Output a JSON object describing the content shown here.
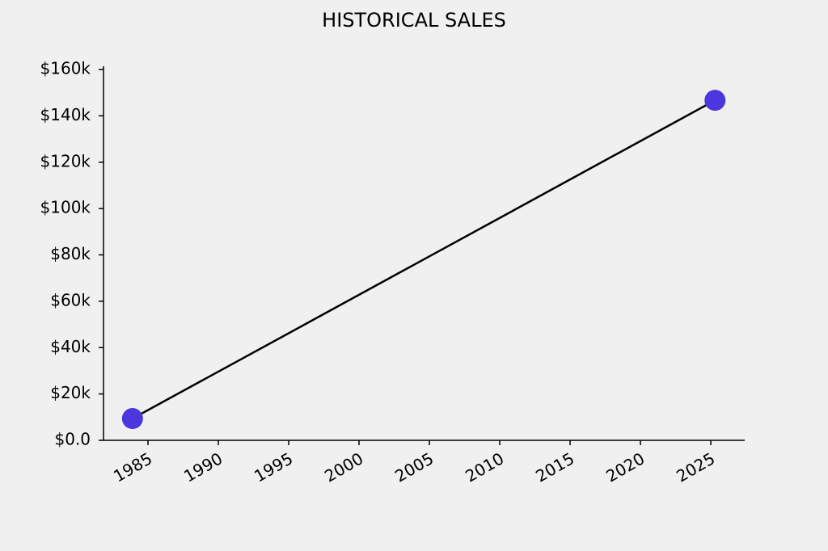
{
  "chart_data": {
    "type": "line",
    "title": "HISTORICAL SALES",
    "x": [
      1983.9,
      2025.3
    ],
    "values": [
      9400,
      146700
    ],
    "line_color": "#000000",
    "marker_color": "#4b37dd",
    "xlim": [
      1981.84,
      2027.41
    ],
    "xticks": [
      1985,
      1990,
      1995,
      2000,
      2005,
      2010,
      2015,
      2020,
      2025
    ],
    "ylim": [
      0,
      161400
    ],
    "yticks": [
      {
        "value": 0,
        "label": "$0.0"
      },
      {
        "value": 20000,
        "label": "$20k"
      },
      {
        "value": 40000,
        "label": "$40k"
      },
      {
        "value": 60000,
        "label": "$60k"
      },
      {
        "value": 80000,
        "label": "$80k"
      },
      {
        "value": 100000,
        "label": "$100k"
      },
      {
        "value": 120000,
        "label": "$120k"
      },
      {
        "value": 140000,
        "label": "$140k"
      },
      {
        "value": 160000,
        "label": "$160k"
      }
    ]
  }
}
